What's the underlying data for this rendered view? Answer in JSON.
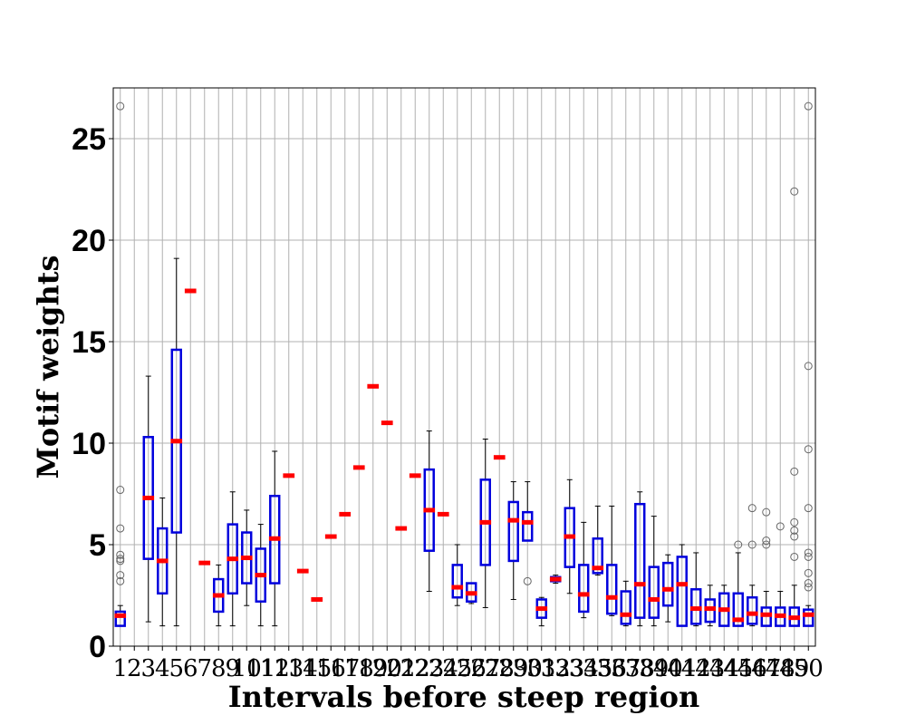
{
  "chart_data": {
    "type": "box",
    "title": "",
    "xlabel": "Intervals before steep region",
    "ylabel": "Motif weights",
    "ylim": [
      0,
      27.5
    ],
    "yticks": [
      0,
      5,
      10,
      15,
      20,
      25
    ],
    "grid": true,
    "colors": {
      "box": "#0000dd",
      "median": "#ff0000",
      "whisker": "#000000",
      "flier": "#666666",
      "grid": "#b0b0b0"
    },
    "categories": [
      "1",
      "2",
      "3",
      "4",
      "5",
      "6",
      "7",
      "8",
      "9",
      "10",
      "11",
      "12",
      "13",
      "14",
      "15",
      "16",
      "17",
      "18",
      "19",
      "20",
      "21",
      "22",
      "23",
      "24",
      "25",
      "26",
      "27",
      "28",
      "29",
      "30",
      "31",
      "32",
      "33",
      "34",
      "35",
      "36",
      "37",
      "38",
      "39",
      "40",
      "41",
      "42",
      "43",
      "44",
      "45",
      "46",
      "47",
      "48",
      "49",
      "50"
    ],
    "boxes": [
      {
        "x": "1",
        "q1": 1.0,
        "q3": 1.7,
        "median": 1.5,
        "whislo": 1.0,
        "whishi": 2.0,
        "fliers": [
          3.2,
          3.5,
          4.2,
          4.3,
          4.5,
          5.8,
          7.7,
          26.6
        ]
      },
      {
        "x": "2",
        "q1": null,
        "q3": null,
        "median": null,
        "whislo": null,
        "whishi": null,
        "fliers": []
      },
      {
        "x": "3",
        "q1": 4.3,
        "q3": 10.3,
        "median": 7.3,
        "whislo": 1.2,
        "whishi": 13.3,
        "fliers": []
      },
      {
        "x": "4",
        "q1": 2.6,
        "q3": 5.8,
        "median": 4.2,
        "whislo": 1.0,
        "whishi": 7.3,
        "fliers": []
      },
      {
        "x": "5",
        "q1": 5.6,
        "q3": 14.6,
        "median": 10.1,
        "whislo": 1.0,
        "whishi": 19.1,
        "fliers": []
      },
      {
        "x": "6",
        "q1": 17.5,
        "q3": 17.5,
        "median": 17.5,
        "whislo": 17.5,
        "whishi": 17.5,
        "fliers": []
      },
      {
        "x": "7",
        "q1": 4.1,
        "q3": 4.1,
        "median": 4.1,
        "whislo": 4.1,
        "whishi": 4.1,
        "fliers": []
      },
      {
        "x": "8",
        "q1": 1.7,
        "q3": 3.3,
        "median": 2.5,
        "whislo": 1.0,
        "whishi": 4.0,
        "fliers": []
      },
      {
        "x": "9",
        "q1": 2.6,
        "q3": 6.0,
        "median": 4.3,
        "whislo": 1.0,
        "whishi": 7.6,
        "fliers": []
      },
      {
        "x": "10",
        "q1": 3.1,
        "q3": 5.6,
        "median": 4.35,
        "whislo": 2.0,
        "whishi": 6.7,
        "fliers": []
      },
      {
        "x": "11",
        "q1": 2.2,
        "q3": 4.8,
        "median": 3.5,
        "whislo": 1.0,
        "whishi": 6.0,
        "fliers": []
      },
      {
        "x": "12",
        "q1": 3.1,
        "q3": 7.4,
        "median": 5.3,
        "whislo": 1.0,
        "whishi": 9.6,
        "fliers": []
      },
      {
        "x": "13",
        "q1": 8.4,
        "q3": 8.4,
        "median": 8.4,
        "whislo": 8.4,
        "whishi": 8.4,
        "fliers": []
      },
      {
        "x": "14",
        "q1": 3.7,
        "q3": 3.7,
        "median": 3.7,
        "whislo": 3.7,
        "whishi": 3.7,
        "fliers": []
      },
      {
        "x": "15",
        "q1": 2.3,
        "q3": 2.3,
        "median": 2.3,
        "whislo": 2.3,
        "whishi": 2.3,
        "fliers": []
      },
      {
        "x": "16",
        "q1": 5.4,
        "q3": 5.4,
        "median": 5.4,
        "whislo": 5.4,
        "whishi": 5.4,
        "fliers": []
      },
      {
        "x": "17",
        "q1": 6.5,
        "q3": 6.5,
        "median": 6.5,
        "whislo": 6.5,
        "whishi": 6.5,
        "fliers": []
      },
      {
        "x": "18",
        "q1": 8.8,
        "q3": 8.8,
        "median": 8.8,
        "whislo": 8.8,
        "whishi": 8.8,
        "fliers": []
      },
      {
        "x": "19",
        "q1": 12.8,
        "q3": 12.8,
        "median": 12.8,
        "whislo": 12.8,
        "whishi": 12.8,
        "fliers": []
      },
      {
        "x": "20",
        "q1": 11.0,
        "q3": 11.0,
        "median": 11.0,
        "whislo": 11.0,
        "whishi": 11.0,
        "fliers": []
      },
      {
        "x": "21",
        "q1": 5.8,
        "q3": 5.8,
        "median": 5.8,
        "whislo": 5.8,
        "whishi": 5.8,
        "fliers": []
      },
      {
        "x": "22",
        "q1": 8.4,
        "q3": 8.4,
        "median": 8.4,
        "whislo": 8.4,
        "whishi": 8.4,
        "fliers": []
      },
      {
        "x": "23",
        "q1": 4.7,
        "q3": 8.7,
        "median": 6.7,
        "whislo": 2.7,
        "whishi": 10.6,
        "fliers": []
      },
      {
        "x": "24",
        "q1": 6.5,
        "q3": 6.5,
        "median": 6.5,
        "whislo": 6.5,
        "whishi": 6.5,
        "fliers": []
      },
      {
        "x": "25",
        "q1": 2.4,
        "q3": 4.0,
        "median": 2.9,
        "whislo": 2.0,
        "whishi": 5.0,
        "fliers": []
      },
      {
        "x": "26",
        "q1": 2.2,
        "q3": 3.1,
        "median": 2.6,
        "whislo": 2.1,
        "whishi": 3.1,
        "fliers": []
      },
      {
        "x": "27",
        "q1": 4.0,
        "q3": 8.2,
        "median": 6.1,
        "whislo": 1.9,
        "whishi": 10.2,
        "fliers": []
      },
      {
        "x": "28",
        "q1": 9.3,
        "q3": 9.3,
        "median": 9.3,
        "whislo": 9.3,
        "whishi": 9.3,
        "fliers": []
      },
      {
        "x": "29",
        "q1": 4.2,
        "q3": 7.1,
        "median": 6.2,
        "whislo": 2.3,
        "whishi": 8.1,
        "fliers": []
      },
      {
        "x": "30",
        "q1": 5.2,
        "q3": 6.6,
        "median": 6.1,
        "whislo": 5.2,
        "whishi": 8.1,
        "fliers": [
          3.2
        ]
      },
      {
        "x": "31",
        "q1": 1.4,
        "q3": 2.3,
        "median": 1.85,
        "whislo": 1.0,
        "whishi": 2.4,
        "fliers": []
      },
      {
        "x": "32",
        "q1": 3.2,
        "q3": 3.4,
        "median": 3.3,
        "whislo": 3.1,
        "whishi": 3.5,
        "fliers": []
      },
      {
        "x": "33",
        "q1": 3.9,
        "q3": 6.8,
        "median": 5.4,
        "whislo": 2.6,
        "whishi": 8.2,
        "fliers": []
      },
      {
        "x": "34",
        "q1": 1.7,
        "q3": 4.0,
        "median": 2.55,
        "whislo": 1.4,
        "whishi": 6.1,
        "fliers": []
      },
      {
        "x": "35",
        "q1": 3.6,
        "q3": 5.3,
        "median": 3.85,
        "whislo": 3.5,
        "whishi": 6.9,
        "fliers": []
      },
      {
        "x": "36",
        "q1": 1.6,
        "q3": 4.0,
        "median": 2.4,
        "whislo": 1.5,
        "whishi": 6.9,
        "fliers": []
      },
      {
        "x": "37",
        "q1": 1.1,
        "q3": 2.7,
        "median": 1.55,
        "whislo": 1.0,
        "whishi": 3.2,
        "fliers": []
      },
      {
        "x": "38",
        "q1": 1.4,
        "q3": 7.0,
        "median": 3.05,
        "whislo": 1.0,
        "whishi": 7.6,
        "fliers": []
      },
      {
        "x": "39",
        "q1": 1.4,
        "q3": 3.9,
        "median": 2.3,
        "whislo": 1.0,
        "whishi": 6.4,
        "fliers": []
      },
      {
        "x": "40",
        "q1": 2.0,
        "q3": 4.1,
        "median": 2.8,
        "whislo": 1.2,
        "whishi": 4.5,
        "fliers": []
      },
      {
        "x": "41",
        "q1": 1.0,
        "q3": 4.4,
        "median": 3.05,
        "whislo": 1.0,
        "whishi": 5.0,
        "fliers": []
      },
      {
        "x": "42",
        "q1": 1.1,
        "q3": 2.8,
        "median": 1.85,
        "whislo": 1.0,
        "whishi": 4.6,
        "fliers": []
      },
      {
        "x": "43",
        "q1": 1.2,
        "q3": 2.3,
        "median": 1.85,
        "whislo": 1.0,
        "whishi": 3.0,
        "fliers": []
      },
      {
        "x": "44",
        "q1": 1.0,
        "q3": 2.6,
        "median": 1.8,
        "whislo": 1.0,
        "whishi": 3.0,
        "fliers": []
      },
      {
        "x": "45",
        "q1": 1.0,
        "q3": 2.6,
        "median": 1.3,
        "whislo": 1.0,
        "whishi": 4.6,
        "fliers": [
          5.0
        ]
      },
      {
        "x": "46",
        "q1": 1.1,
        "q3": 2.4,
        "median": 1.6,
        "whislo": 1.0,
        "whishi": 3.0,
        "fliers": [
          5.0,
          6.8
        ]
      },
      {
        "x": "47",
        "q1": 1.0,
        "q3": 1.9,
        "median": 1.55,
        "whislo": 1.0,
        "whishi": 2.7,
        "fliers": [
          5.0,
          5.2,
          6.6
        ]
      },
      {
        "x": "48",
        "q1": 1.0,
        "q3": 1.9,
        "median": 1.5,
        "whislo": 1.0,
        "whishi": 2.7,
        "fliers": [
          5.9
        ]
      },
      {
        "x": "49",
        "q1": 1.0,
        "q3": 1.9,
        "median": 1.4,
        "whislo": 1.0,
        "whishi": 3.0,
        "fliers": [
          4.4,
          5.4,
          5.7,
          6.1,
          8.6,
          22.4
        ]
      },
      {
        "x": "50",
        "q1": 1.0,
        "q3": 1.8,
        "median": 1.55,
        "whislo": 1.0,
        "whishi": 2.0,
        "fliers": [
          2.9,
          3.1,
          3.6,
          4.4,
          4.6,
          6.8,
          9.7,
          13.8,
          26.6
        ]
      }
    ]
  }
}
